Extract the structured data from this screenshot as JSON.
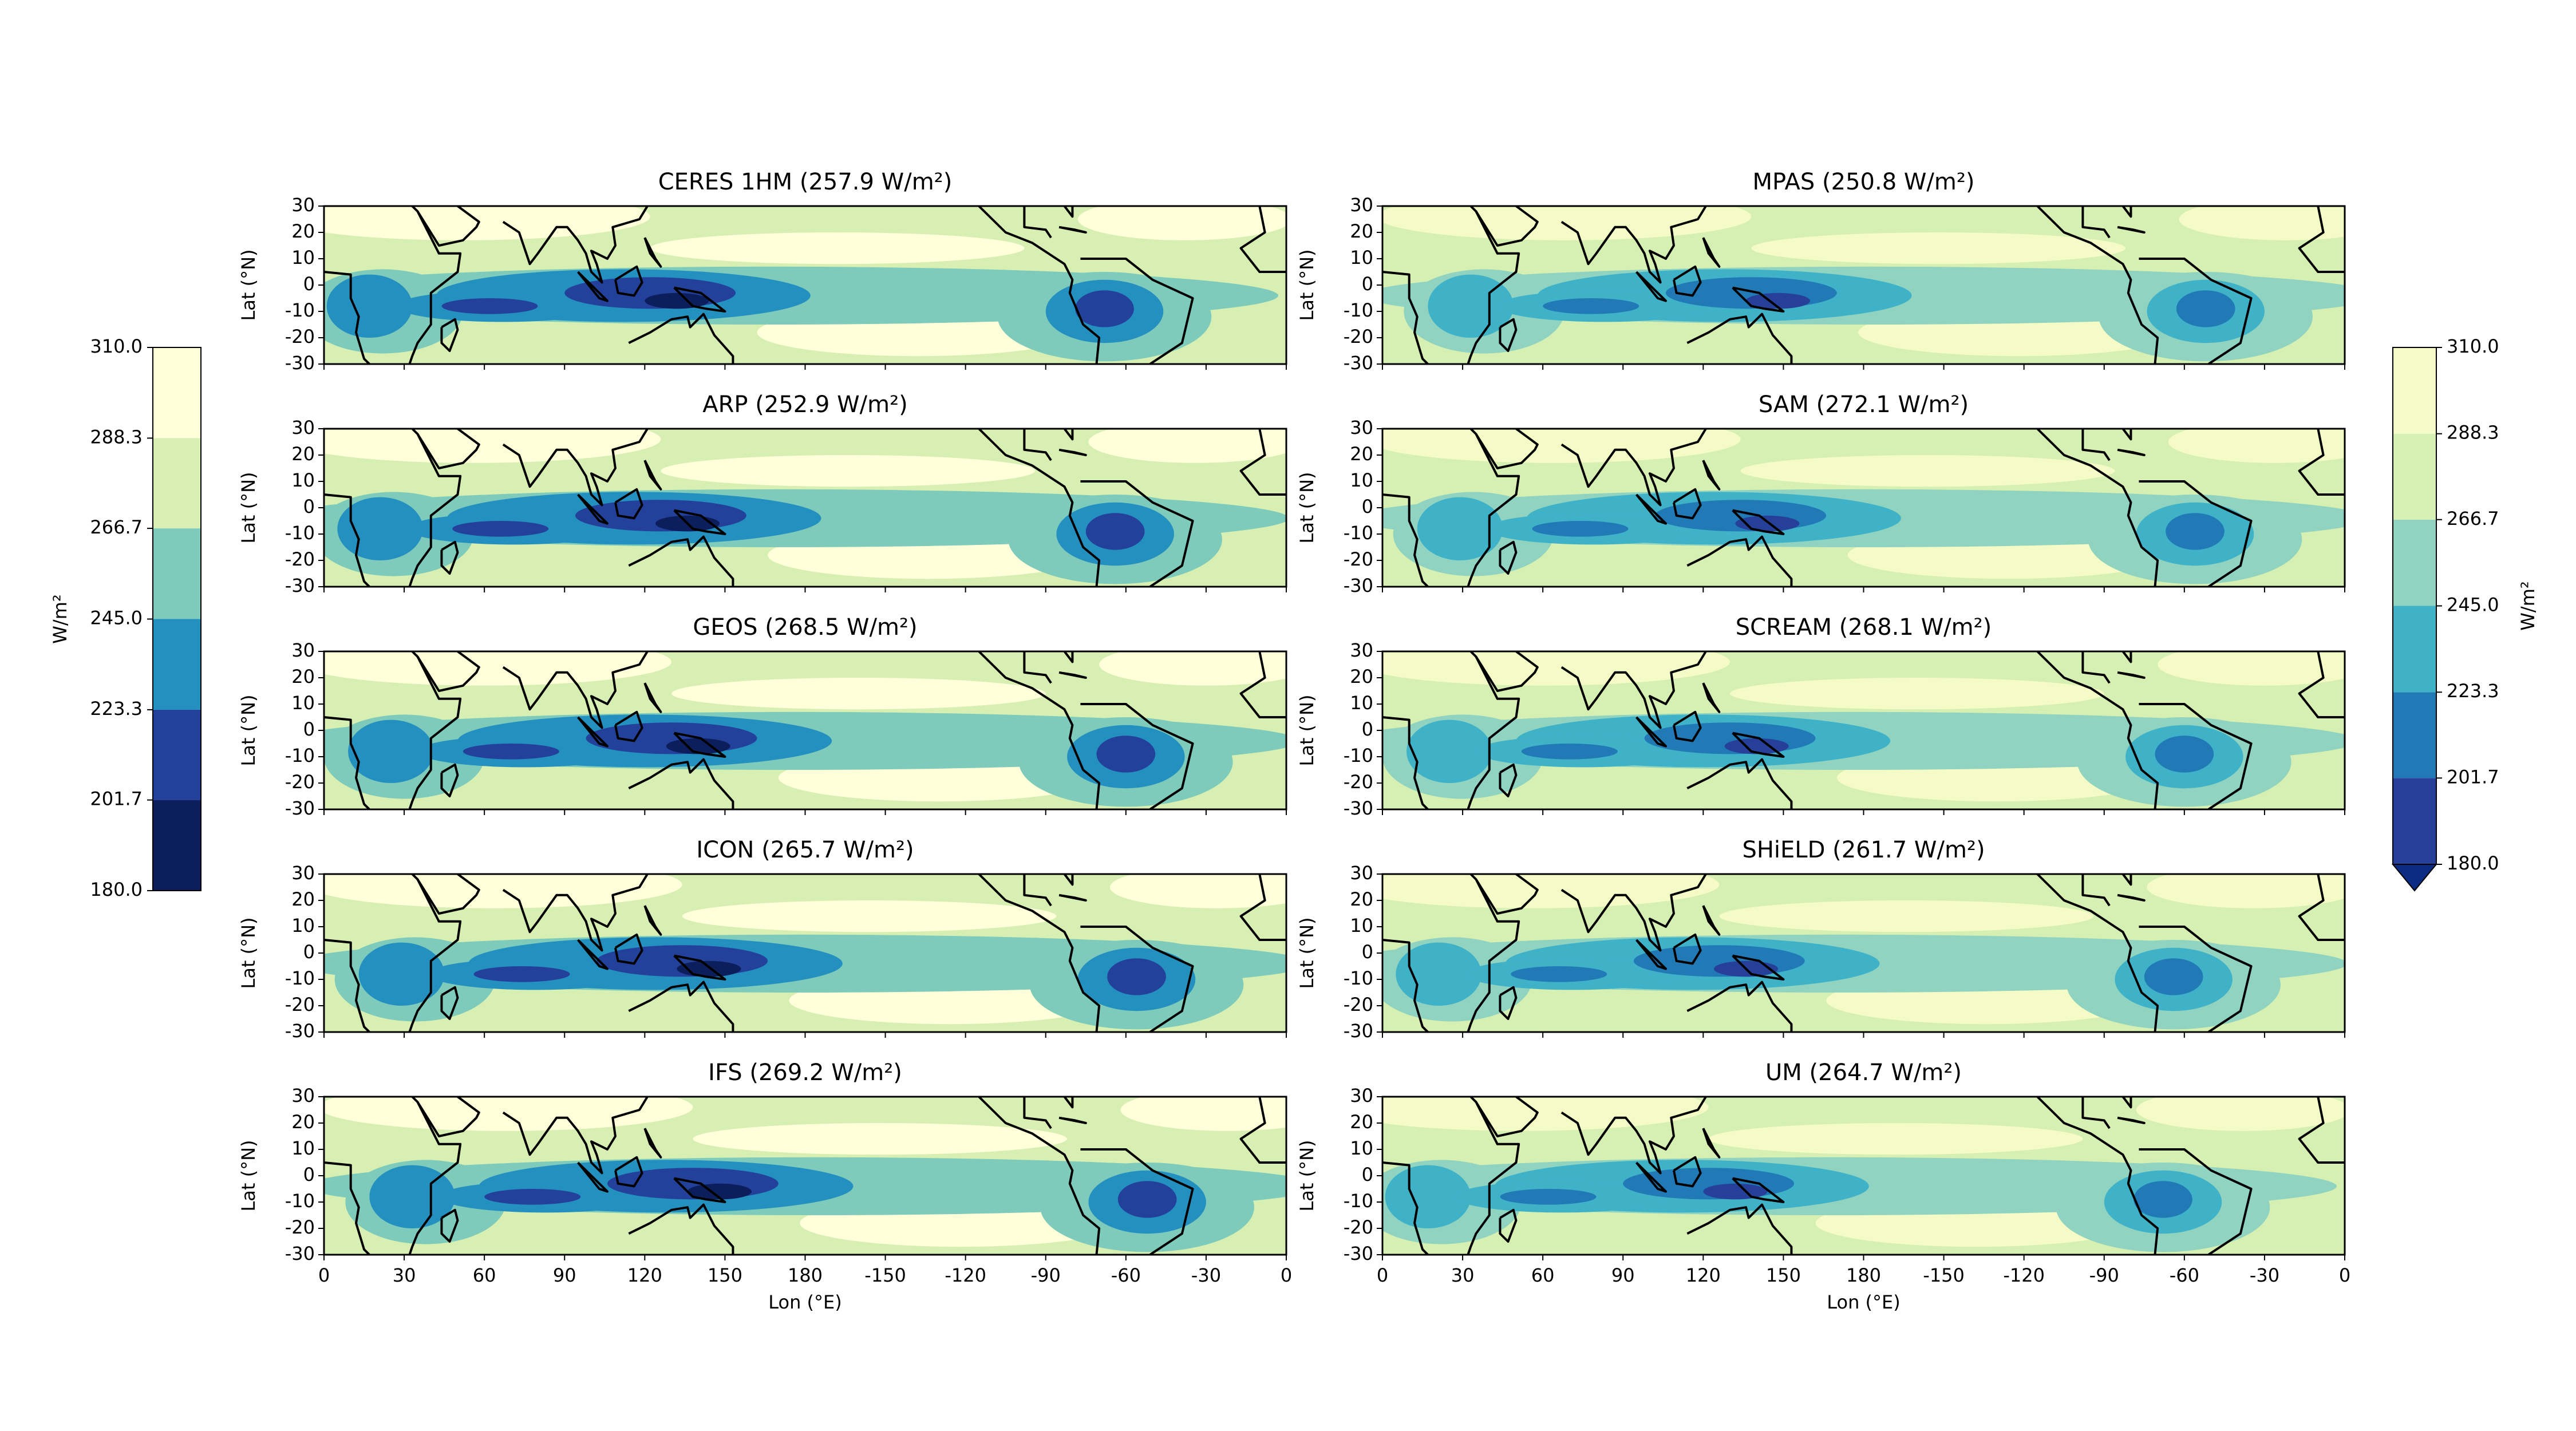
{
  "chart_data": {
    "type": "map-grid",
    "lat_axis": {
      "label": "Lat (°N)",
      "lim": [
        -30,
        30
      ],
      "ticks": [
        30,
        20,
        10,
        0,
        -10,
        -20,
        -30
      ]
    },
    "lon_axis": {
      "label": "Lon (°E)",
      "lim": [
        0,
        360
      ],
      "ticks": [
        0,
        30,
        60,
        90,
        120,
        150,
        180,
        {
          "value": 210,
          "label": "-150"
        },
        {
          "value": 240,
          "label": "-120"
        },
        {
          "value": 270,
          "label": "-90"
        },
        {
          "value": 300,
          "label": "-60"
        },
        {
          "value": 330,
          "label": "-30"
        },
        {
          "value": 360,
          "label": "0"
        }
      ]
    },
    "columns": [
      {
        "colorbar": {
          "label": "W/m²",
          "lim": [
            180,
            310
          ],
          "side": "left",
          "colors": [
            "#0c1f5c",
            "#23419a",
            "#2490c0",
            "#7ecbbb",
            "#d7efb3",
            "#ffffda"
          ],
          "ticks": [
            {
              "value": 310,
              "label": "310.0"
            },
            {
              "value": 288.3,
              "label": "288.3"
            },
            {
              "value": 266.7,
              "label": "266.7"
            },
            {
              "value": 245,
              "label": "245.0"
            },
            {
              "value": 223.3,
              "label": "223.3"
            },
            {
              "value": 201.7,
              "label": "201.7"
            },
            {
              "value": 180,
              "label": "180.0"
            }
          ]
        },
        "panels": [
          {
            "title": "CERES 1HM (257.9 W/m²)"
          },
          {
            "title": "ARP (252.9 W/m²)"
          },
          {
            "title": "GEOS (268.5 W/m²)"
          },
          {
            "title": "ICON (265.7 W/m²)"
          },
          {
            "title": "IFS (269.2 W/m²)"
          }
        ]
      },
      {
        "colorbar": {
          "label": "W/m²",
          "lim": [
            180,
            310
          ],
          "side": "right",
          "extend": "min",
          "extend_color": "#0c2c84",
          "colors": [
            "#26409a",
            "#2179b5",
            "#3fb2c8",
            "#8fd3c0",
            "#d6efb2",
            "#f5fbc6"
          ],
          "ticks": [
            {
              "value": 310,
              "label": "310.0"
            },
            {
              "value": 288.3,
              "label": "288.3"
            },
            {
              "value": 266.7,
              "label": "266.7"
            },
            {
              "value": 245,
              "label": "245.0"
            },
            {
              "value": 223.3,
              "label": "223.3"
            },
            {
              "value": 201.7,
              "label": "201.7"
            },
            {
              "value": 180,
              "label": "180.0"
            }
          ]
        },
        "panels": [
          {
            "title": "MPAS (250.8 W/m²)"
          },
          {
            "title": "SAM (272.1 W/m²)"
          },
          {
            "title": "SCREAM (268.1 W/m²)"
          },
          {
            "title": "SHiELD (261.7 W/m²)"
          },
          {
            "title": "UM (264.7 W/m²)"
          }
        ]
      }
    ]
  }
}
